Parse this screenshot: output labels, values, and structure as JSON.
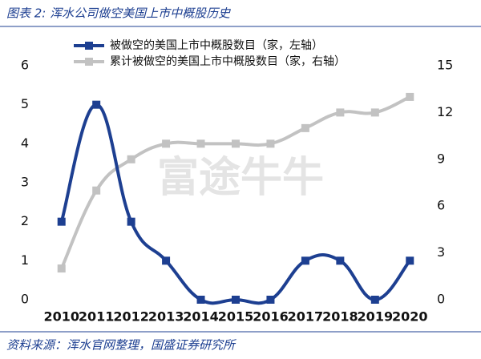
{
  "chart_data": {
    "type": "line",
    "title": "图表 2: 浑水公司做空美国上市中概股历史",
    "source": "资料来源：浑水官网整理，国盛证券研究所",
    "watermark": "富途牛牛",
    "categories": [
      "2010",
      "2011",
      "2012",
      "2013",
      "2014",
      "2015",
      "2016",
      "2017",
      "2018",
      "2019",
      "2020"
    ],
    "series": [
      {
        "name": "被做空的美国上市中概股数目（家，左轴）",
        "color": "#1d3f91",
        "values": [
          2,
          5,
          2,
          1,
          0,
          0,
          0,
          1,
          1,
          0,
          1
        ]
      },
      {
        "name": "累计被做空的美国上市中概股数目（家，右轴）",
        "color": "#c2c2c2",
        "axis": "y2",
        "values": [
          2,
          7,
          9,
          10,
          10,
          10,
          10,
          11,
          12,
          12,
          13
        ]
      }
    ],
    "ylim": [
      0,
      6
    ],
    "yticks": [
      0,
      1,
      2,
      3,
      4,
      5,
      6
    ],
    "y2lim": [
      0,
      15
    ],
    "y2ticks": [
      0,
      3,
      6,
      9,
      12,
      15
    ]
  }
}
